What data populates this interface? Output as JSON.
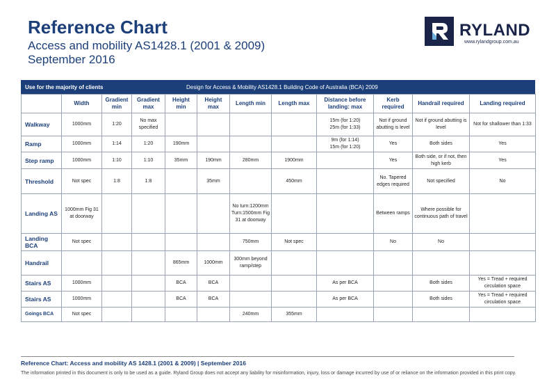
{
  "header": {
    "title": "Reference Chart",
    "subtitle": "Access and mobility AS1428.1 (2001 & 2009)",
    "date": "September 2016"
  },
  "logo": {
    "name": "RYLAND",
    "url": "www.rylandgroup.com.au"
  },
  "table": {
    "banner_left": "Use for the majority of clients",
    "banner_right": "Design for Access & Mobility AS1428.1 Building Code of Australia (BCA) 2009",
    "columns": [
      null,
      "Width",
      "Gradient min",
      "Gradient max",
      "Height min",
      "Height max",
      "Length min",
      "Length max",
      "Distance before landing: max",
      "Kerb required",
      "Handrail required",
      "Landing required"
    ],
    "rows": [
      [
        "Walkway",
        "1000mm",
        "1:20",
        "No max specified",
        null,
        null,
        null,
        null,
        "15m (for 1:20)\n25m (for 1:33)",
        "Not if ground abutting is level",
        "Not if ground abutting is level",
        "Not for shallower than 1:33"
      ],
      [
        "Ramp",
        "1000mm",
        "1:14",
        "1:20",
        "190mm",
        null,
        null,
        null,
        "9m (for 1:14)\n15m (for 1:20)",
        "Yes",
        "Both sides",
        "Yes"
      ],
      [
        "Step ramp",
        "1000mm",
        "1:10",
        "1:10",
        "35mm",
        "190mm",
        "280mm",
        "1900mm",
        null,
        "Yes",
        "Both side, or if not, then high kerb",
        "Yes"
      ],
      [
        "Threshold",
        "Not spec",
        "1:8",
        "1:8",
        null,
        "35mm",
        null,
        "450mm",
        null,
        "No. Tapered edges required",
        "Not specified",
        "No"
      ],
      [
        "Landing AS",
        "1000mm Fig 31 at doorway",
        null,
        null,
        null,
        null,
        "No turn:1200mm Turn:1500mm Fig 31 at doorway",
        null,
        null,
        "Between ramps",
        "Where possible for continuous path of travel",
        null
      ],
      [
        "Landing BCA",
        "Not spec",
        null,
        null,
        null,
        null,
        "750mm",
        "Not spec",
        null,
        "No",
        "No",
        null
      ],
      [
        "Handrail",
        null,
        null,
        null,
        "865mm",
        "1000mm",
        "300mm beyond ramp/step",
        null,
        null,
        null,
        null,
        null
      ],
      [
        "Stairs AS",
        "1000mm",
        null,
        null,
        "BCA",
        "BCA",
        null,
        null,
        "As per BCA",
        null,
        "Both sides",
        "Yes = Tread + required circulation space"
      ],
      [
        "Stairs AS",
        "1000mm",
        null,
        null,
        "BCA",
        "BCA",
        null,
        null,
        "As per BCA",
        null,
        "Both sides",
        "Yes = Tread + required circulation space"
      ],
      [
        "Goings BCA",
        "Not spec",
        null,
        null,
        null,
        null,
        "240mm",
        "355mm",
        null,
        null,
        null,
        null
      ]
    ]
  },
  "footer": {
    "title": "Reference Chart: Access and mobility AS 1428.1 (2001 & 2009) | September 2016",
    "disclaimer": "The information printed in this document is only to be used as a guide. Ryland Group does not accept any liability for misinformation, injury, loss or damage incurred by use of or reliance on the information provided in this print copy."
  }
}
